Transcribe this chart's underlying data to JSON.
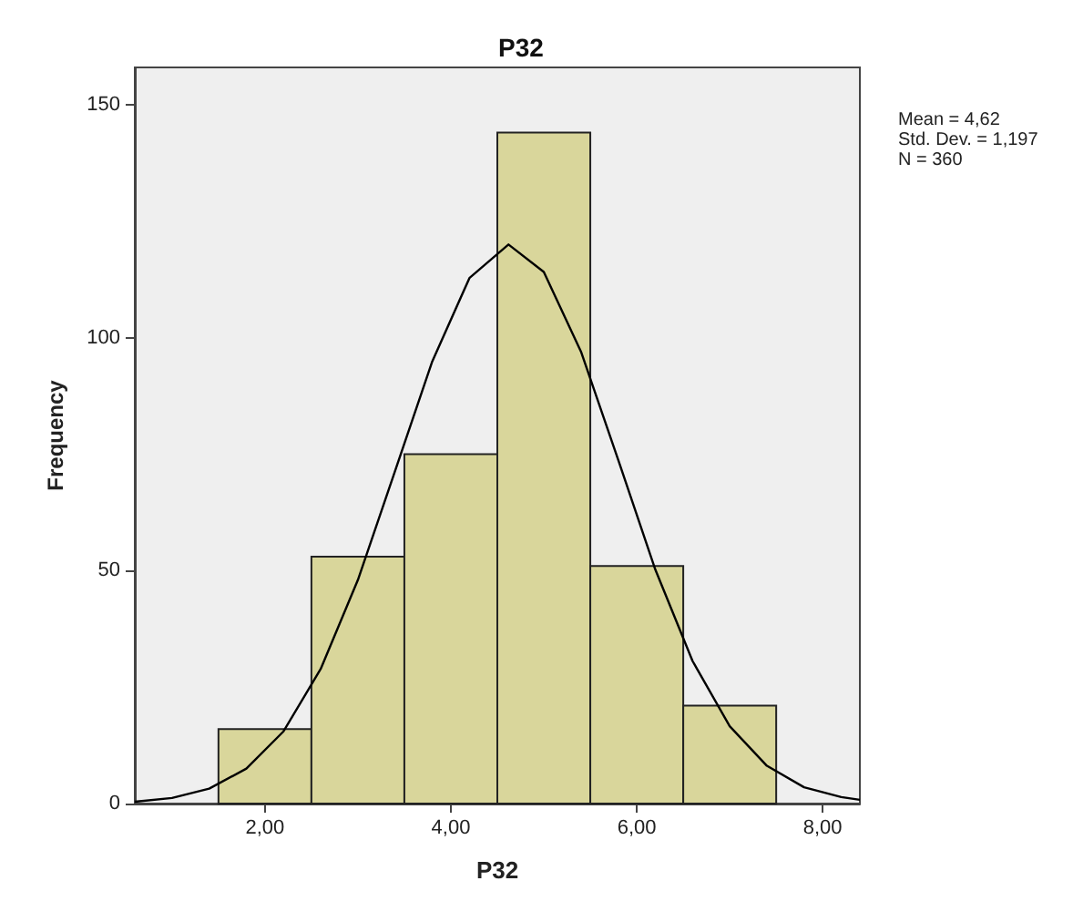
{
  "chart_data": {
    "type": "histogram",
    "title": "P32",
    "xlabel": "P32",
    "ylabel": "Frequency",
    "bins": [
      1.5,
      2.5,
      3.5,
      4.5,
      5.5,
      6.5,
      7.5
    ],
    "values": [
      16,
      53,
      75,
      144,
      51,
      21
    ],
    "color": "#d9d69b",
    "series": [
      {
        "type": "line",
        "color": "#000000",
        "x": [
          0.6,
          1.0,
          1.4,
          1.8,
          2.2,
          2.6,
          3.0,
          3.4,
          3.8,
          4.2,
          4.62,
          5.0,
          5.4,
          5.8,
          6.2,
          6.6,
          7.0,
          7.4,
          7.8,
          8.2,
          8.4
        ],
        "values": [
          0.4,
          1.2,
          3.2,
          7.5,
          15.5,
          28.9,
          48.0,
          71.4,
          94.9,
          112.8,
          120.0,
          114.1,
          97.0,
          73.8,
          50.2,
          30.6,
          16.6,
          8.1,
          3.5,
          1.4,
          0.8
        ]
      }
    ],
    "xlim": [
      0.6,
      8.4
    ],
    "xticks": [
      {
        "value": 2,
        "label": "2,00"
      },
      {
        "value": 4,
        "label": "4,00"
      },
      {
        "value": 6,
        "label": "6,00"
      },
      {
        "value": 8,
        "label": "8,00"
      }
    ],
    "ylim": [
      0,
      158
    ],
    "yticks": [
      0,
      50,
      100,
      150
    ],
    "grid": false,
    "marker": "none",
    "line_style": "solid",
    "annotations": [
      "Mean = 4,62",
      "Std. Dev. = 1,197",
      "N = 360"
    ]
  }
}
